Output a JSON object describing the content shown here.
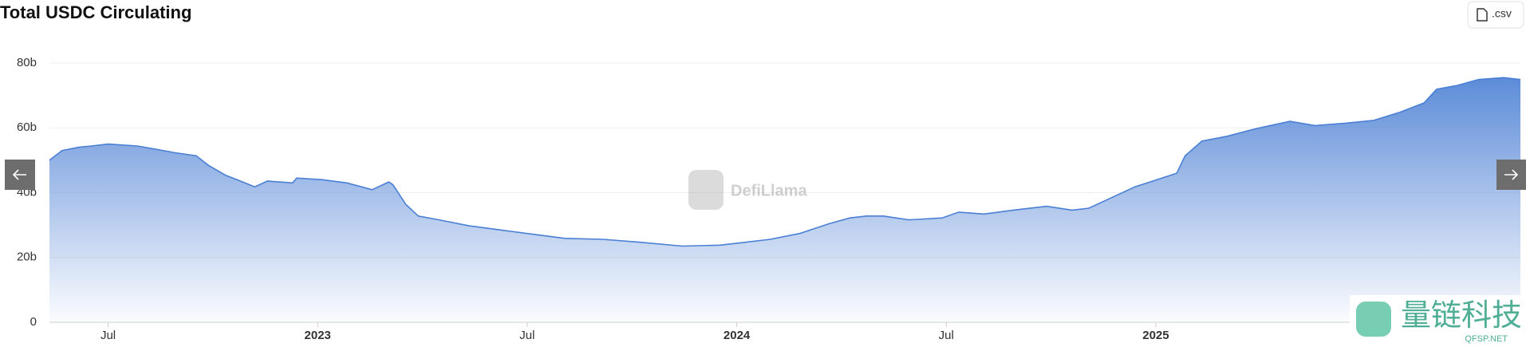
{
  "chart_data": {
    "type": "area",
    "title": "Total USDC Circulating",
    "x": [
      2022.36,
      2022.39,
      2022.43,
      2022.46,
      2022.5,
      2022.57,
      2022.61,
      2022.66,
      2022.71,
      2022.74,
      2022.78,
      2022.81,
      2022.85,
      2022.88,
      2022.94,
      2022.95,
      2023.01,
      2023.07,
      2023.13,
      2023.17,
      2023.18,
      2023.21,
      2023.24,
      2023.29,
      2023.36,
      2023.43,
      2023.5,
      2023.59,
      2023.68,
      2023.77,
      2023.87,
      2023.96,
      2024.0,
      2024.08,
      2024.15,
      2024.22,
      2024.27,
      2024.31,
      2024.35,
      2024.41,
      2024.49,
      2024.53,
      2024.59,
      2024.66,
      2024.74,
      2024.8,
      2024.84,
      2024.89,
      2024.95,
      2025.0,
      2025.05,
      2025.07,
      2025.11,
      2025.17,
      2025.24,
      2025.32,
      2025.38,
      2025.45,
      2025.52,
      2025.58,
      2025.64,
      2025.67,
      2025.72,
      2025.77,
      2025.83,
      2025.87
    ],
    "series": [
      {
        "color": "#4a7fd4",
        "values": [
          50,
          53,
          54,
          54.4,
          55,
          54.4,
          53.5,
          52.3,
          51.4,
          48.4,
          45.4,
          43.9,
          41.8,
          43.6,
          43,
          44.5,
          44,
          43,
          40.9,
          43.3,
          42.4,
          36.4,
          32.8,
          31.6,
          29.8,
          28.6,
          27.4,
          25.9,
          25.6,
          24.7,
          23.5,
          23.8,
          24.4,
          25.6,
          27.4,
          30.4,
          32.2,
          32.8,
          32.8,
          31.6,
          32.2,
          34,
          33.4,
          34.6,
          35.8,
          34.6,
          35.2,
          38.2,
          41.8,
          43.9,
          46,
          51.4,
          55.9,
          57.4,
          59.8,
          62,
          60.7,
          61.4,
          62.3,
          64.7,
          67.7,
          71.9,
          73.1,
          74.9,
          75.5,
          74.9
        ]
      }
    ],
    "xlim": [
      2022.36,
      2025.87
    ],
    "xticks": [
      {
        "value": 2022.5,
        "label": "Jul"
      },
      2023,
      {
        "value": 2023.5,
        "label": "Jul"
      },
      2024,
      {
        "value": 2024.5,
        "label": "Jul"
      },
      2025
    ],
    "ylim": [
      0,
      80
    ],
    "yticks": [
      0,
      {
        "value": 20,
        "label": "20b"
      },
      {
        "value": 40,
        "label": "40b"
      },
      {
        "value": 60,
        "label": "60b"
      },
      {
        "value": 80,
        "label": "80b"
      }
    ],
    "grid": true
  },
  "csv_button": ".csv",
  "watermark": "DefiLlama",
  "brand": "量链科技",
  "brand_url": "QFSP.NET"
}
